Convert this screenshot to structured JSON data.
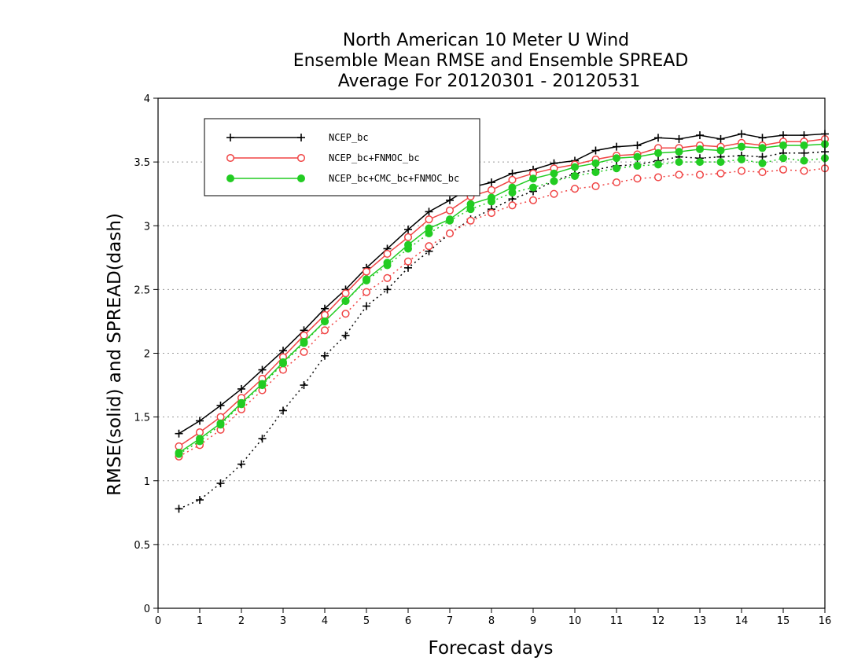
{
  "chart_data": {
    "type": "line",
    "title": [
      "North American 10 Meter U Wind",
      "Ensemble Mean RMSE and Ensemble SPREAD",
      "Average For 20120301 - 20120531"
    ],
    "xlabel": "Forecast days",
    "ylabel": "RMSE(solid) and SPREAD(dash)",
    "xlim": [
      0,
      16
    ],
    "ylim": [
      0,
      4
    ],
    "xticks": [
      0,
      1,
      2,
      3,
      4,
      5,
      6,
      7,
      8,
      9,
      10,
      11,
      12,
      13,
      14,
      15,
      16
    ],
    "yticks": [
      0,
      0.5,
      1,
      1.5,
      2,
      2.5,
      3,
      3.5,
      4
    ],
    "grid": "horizontal dotted",
    "legend_placement": "top-left",
    "x": [
      0.5,
      1,
      1.5,
      2,
      2.5,
      3,
      3.5,
      4,
      4.5,
      5,
      5.5,
      6,
      6.5,
      7,
      7.5,
      8,
      8.5,
      9,
      9.5,
      10,
      10.5,
      11,
      11.5,
      12,
      12.5,
      13,
      13.5,
      14,
      14.5,
      15,
      15.5,
      16
    ],
    "series": [
      {
        "name": "NCEP_bc",
        "color": "#000000",
        "marker": "plus",
        "rmse": [
          1.37,
          1.47,
          1.59,
          1.72,
          1.87,
          2.02,
          2.18,
          2.35,
          2.5,
          2.67,
          2.82,
          2.97,
          3.11,
          3.2,
          3.3,
          3.34,
          3.41,
          3.44,
          3.49,
          3.51,
          3.59,
          3.62,
          3.63,
          3.69,
          3.68,
          3.71,
          3.68,
          3.72,
          3.69,
          3.71,
          3.71,
          3.72
        ],
        "spread": [
          0.78,
          0.85,
          0.98,
          1.13,
          1.33,
          1.55,
          1.75,
          1.98,
          2.14,
          2.37,
          2.5,
          2.67,
          2.8,
          2.94,
          3.05,
          3.13,
          3.21,
          3.27,
          3.35,
          3.41,
          3.44,
          3.47,
          3.48,
          3.51,
          3.54,
          3.53,
          3.54,
          3.55,
          3.54,
          3.57,
          3.57,
          3.58
        ]
      },
      {
        "name": "NCEP_bc+FNMOC_bc",
        "color": "#f04545",
        "marker": "open-circle",
        "rmse": [
          1.27,
          1.38,
          1.5,
          1.65,
          1.8,
          1.97,
          2.14,
          2.3,
          2.47,
          2.64,
          2.78,
          2.91,
          3.05,
          3.12,
          3.23,
          3.28,
          3.36,
          3.41,
          3.45,
          3.48,
          3.52,
          3.55,
          3.56,
          3.61,
          3.61,
          3.63,
          3.62,
          3.65,
          3.63,
          3.66,
          3.66,
          3.68
        ],
        "spread": [
          1.19,
          1.28,
          1.4,
          1.56,
          1.71,
          1.87,
          2.01,
          2.18,
          2.31,
          2.48,
          2.59,
          2.72,
          2.84,
          2.94,
          3.04,
          3.1,
          3.16,
          3.2,
          3.25,
          3.29,
          3.31,
          3.34,
          3.37,
          3.38,
          3.4,
          3.4,
          3.41,
          3.43,
          3.42,
          3.44,
          3.43,
          3.45
        ]
      },
      {
        "name": "NCEP_bc+CMC_bc+FNMOC_bc",
        "color": "#22cc22",
        "marker": "filled-circle",
        "rmse": [
          1.22,
          1.33,
          1.45,
          1.61,
          1.76,
          1.93,
          2.09,
          2.25,
          2.41,
          2.58,
          2.71,
          2.85,
          2.98,
          3.05,
          3.17,
          3.22,
          3.3,
          3.37,
          3.41,
          3.46,
          3.49,
          3.53,
          3.54,
          3.57,
          3.58,
          3.6,
          3.59,
          3.62,
          3.61,
          3.63,
          3.63,
          3.64
        ],
        "spread": [
          1.21,
          1.31,
          1.44,
          1.6,
          1.75,
          1.92,
          2.08,
          2.25,
          2.41,
          2.57,
          2.69,
          2.82,
          2.94,
          3.04,
          3.13,
          3.19,
          3.26,
          3.3,
          3.35,
          3.39,
          3.42,
          3.45,
          3.47,
          3.48,
          3.5,
          3.5,
          3.5,
          3.52,
          3.49,
          3.53,
          3.51,
          3.53
        ]
      }
    ]
  }
}
